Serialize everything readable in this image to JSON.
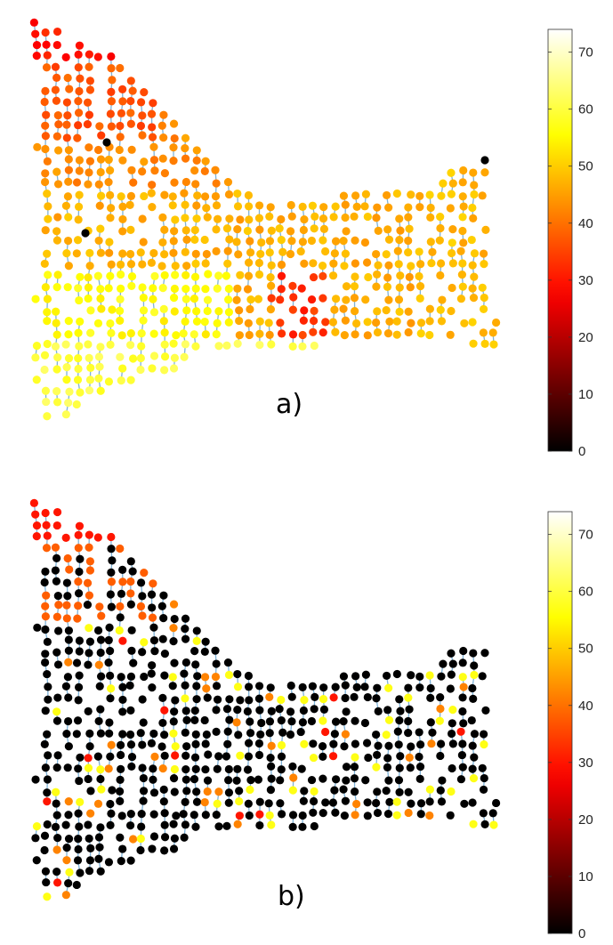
{
  "chart_data": [
    {
      "type": "scatter",
      "panel_label": "a)",
      "description_scale": "node value color-mapped (hot colormap)",
      "colorbar": {
        "min": 0,
        "max": 74,
        "ticks": [
          0,
          10,
          20,
          30,
          40,
          50,
          60,
          70
        ],
        "colormap": "hot"
      },
      "regions": [
        {
          "zone": "north-west tip",
          "value": 30
        },
        {
          "zone": "north-west block",
          "value": 37
        },
        {
          "zone": "upper diagonal",
          "value": 43
        },
        {
          "zone": "central strip",
          "value": 47
        },
        {
          "zone": "south-west fan",
          "value": 56
        },
        {
          "zone": "southern edge",
          "value": 60
        },
        {
          "zone": "east block",
          "value": 48
        },
        {
          "zone": "central pocket",
          "value": 33
        }
      ],
      "outliers": [
        {
          "zone": "north-west",
          "value": 0
        },
        {
          "zone": "west",
          "value": 0
        },
        {
          "zone": "east tip",
          "value": 0
        }
      ]
    },
    {
      "type": "scatter",
      "panel_label": "b)",
      "colorbar": {
        "min": 0,
        "max": 74,
        "ticks": [
          0,
          10,
          20,
          30,
          40,
          50,
          60,
          70
        ],
        "colormap": "hot"
      },
      "regions": [
        {
          "zone": "north-west tip",
          "value": 30
        },
        {
          "zone": "north-west block",
          "value": 38
        },
        {
          "zone": "remaining network",
          "value": 0
        }
      ],
      "highlighted_values": [
        42,
        57,
        30
      ]
    }
  ]
}
